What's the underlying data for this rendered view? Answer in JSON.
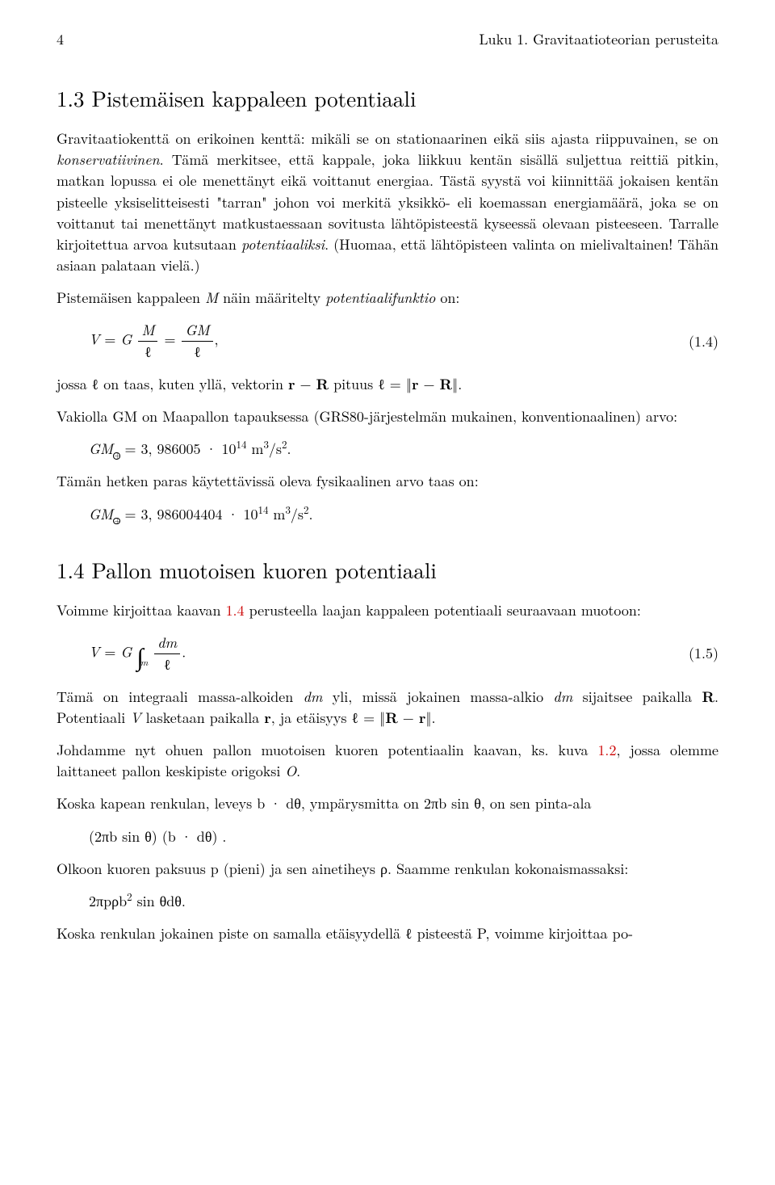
{
  "head": {
    "pagenum": "4",
    "chapter": "Luku 1. Gravitaatioteorian perusteita"
  },
  "sec13": {
    "title": "1.3 Pistemäisen kappaleen potentiaali",
    "p1a": "Gravitaatiokenttä on erikoinen kenttä: mikäli se on stationaarinen eikä siis ajasta riippuvainen, se on ",
    "p1b": "konservatiivinen",
    "p1c": ". Tämä merkitsee, että kappale, joka liikkuu kentän sisällä suljettua reittiä pitkin, matkan lopussa ei ole menettänyt eikä voittanut energiaa. Tästä syystä voi kiinnittää jokaisen kentän pisteelle yksiselitteisesti \"tarran\" johon voi merkitä yksikkö- eli koemassan energiamäärä, joka se on voittanut tai menettänyt matkustaessaan sovitusta lähtöpisteestä kyseessä olevaan pisteeseen. Tarralle kirjoitettua arvoa kutsutaan ",
    "p1d": "potentiaaliksi",
    "p1e": ". (Huomaa, että lähtöpisteen valinta on mielivaltainen! Tähän asiaan palataan vielä.)",
    "p2a": "Pistemäisen kappaleen ",
    "p2b": " näin määritelty ",
    "p2b2": "potentiaalifunktio",
    "p2c": " on:",
    "eq14num": "(1.4)",
    "p3": "jossa ℓ on taas, kuten yllä, vektorin ",
    "p3b": " pituus ℓ = ‖",
    "p3c": "‖.",
    "p4": "Vakiolla GM on Maapallon tapauksessa (GRS80-järjestelmän mukainen, konventionaalinen) arvo:",
    "gm1a": " = 3, 986005 · 10",
    "gm1exp": "14",
    "gm1u": " m",
    "gm1s": "/s",
    "p5": "Tämän hetken paras käytettävissä oleva fysikaalinen arvo taas on:",
    "gm2a": " = 3, 986004404 · 10"
  },
  "sec14": {
    "title": "1.4 Pallon muotoisen kuoren potentiaali",
    "p1a": "Voimme kirjoittaa kaavan ",
    "p1lnk": "1.4",
    "p1b": " perusteella laajan kappaleen potentiaali seuraavaan muotoon:",
    "eq15num": "(1.5)",
    "p2a": "Tämä on integraali massa-alkoiden ",
    "p2b": " yli, missä jokainen massa-alkio ",
    "p2c": " sijaitsee paikalla ",
    "p2d": ". Potentiaali ",
    "p2e": " lasketaan paikalla ",
    "p2f": ", ja etäisyys ℓ = ‖",
    "p2g": "‖.",
    "p3a": "Johdamme nyt ohuen pallon muotoisen kuoren potentiaalin kaavan, ks. kuva ",
    "p3lnk": "1.2",
    "p3b": ", jossa olemme laittaneet pallon keskipiste origoksi ",
    "p4": "Koska kapean renkulan, leveys b · dθ, ympärysmitta on 2πb sin θ, on sen pinta-ala",
    "eqA": "(2πb sin θ) (b · dθ) .",
    "p5": "Olkoon kuoren paksuus p (pieni) ja sen ainetiheys ρ. Saamme renkulan kokonaismassaksi:",
    "eqB": "2πpρb",
    "eqB2": " sin θdθ.",
    "p6": "Koska renkulan jokainen piste on samalla etäisyydellä ℓ pisteestä P, voimme kirjoittaa po-"
  },
  "math": {
    "V": "V",
    "G": "G",
    "M": "M",
    "ell": "ℓ",
    "GM": "GM",
    "r": "r",
    "R": "R",
    "dm": "dm",
    "m": "m",
    "O": "O",
    "minus": " − ",
    "eq": " = ",
    "comma": ",",
    "dot": "."
  }
}
